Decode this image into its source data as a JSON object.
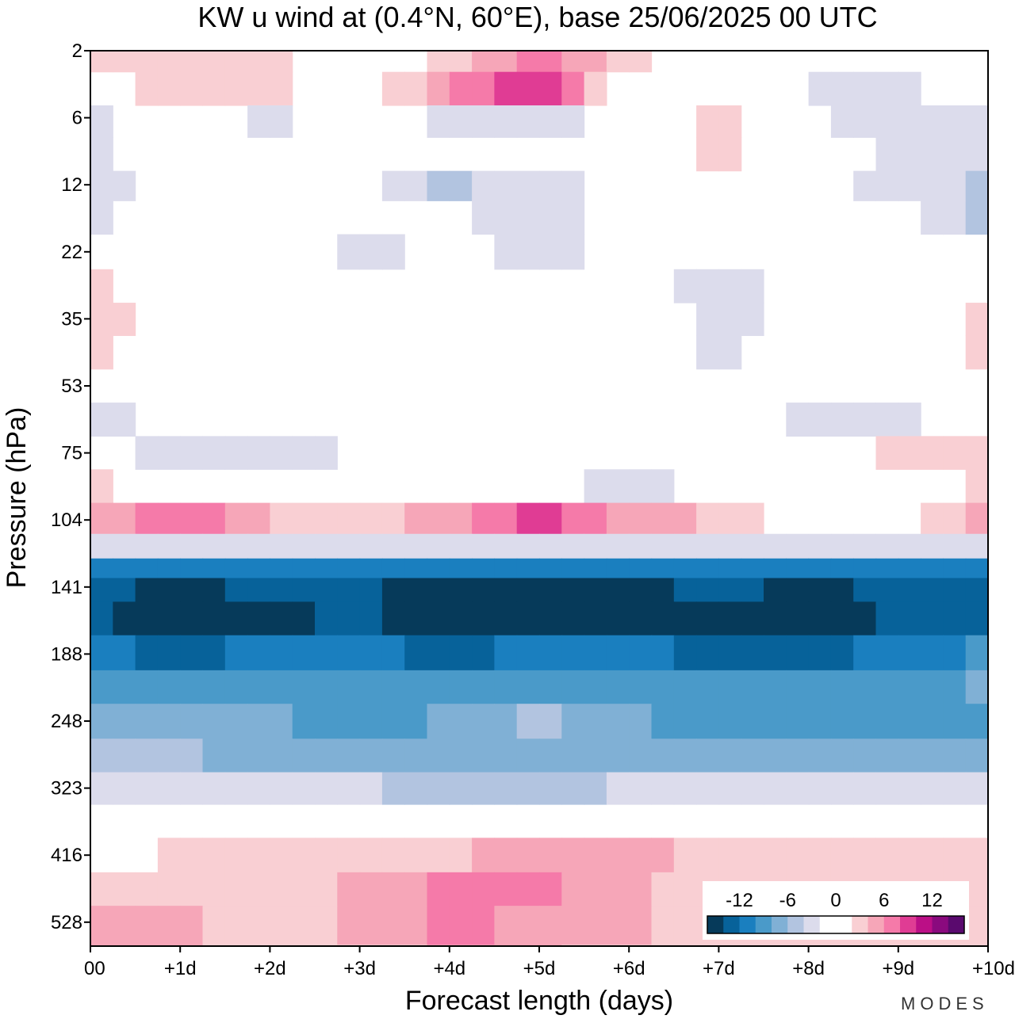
{
  "title": "KW u wind at (0.4°N, 60°E),  base 25/06/2025  00 UTC",
  "brand": "MODES",
  "chart_data": {
    "type": "heatmap",
    "xlabel": "Forecast length (days)",
    "ylabel": "Pressure (hPa)",
    "x_ticks": [
      "00",
      "+1d",
      "+2d",
      "+3d",
      "+4d",
      "+5d",
      "+6d",
      "+7d",
      "+8d",
      "+9d",
      "+10d"
    ],
    "x_range": [
      0,
      10
    ],
    "y_ticks": [
      2,
      6,
      12,
      22,
      35,
      53,
      75,
      104,
      141,
      188,
      248,
      323,
      416,
      528
    ],
    "y_scale": "log",
    "y_range": [
      2,
      620
    ],
    "y_inverted": true,
    "colorbar": {
      "tick_labels": [
        "-12",
        "-6",
        "0",
        "6",
        "12"
      ],
      "levels": [
        -16,
        -14,
        -12,
        -10,
        -8,
        -6,
        -4,
        -2,
        0,
        2,
        4,
        6,
        8,
        10,
        12,
        14,
        16
      ],
      "colors": [
        "#063a5a",
        "#07629a",
        "#1a7fbf",
        "#4a9ac9",
        "#80b0d5",
        "#b2c4e0",
        "#dcdcec",
        "#ffffff",
        "#ffffff",
        "#f9cfd3",
        "#f6a6b8",
        "#f57aa9",
        "#e03c94",
        "#bb0f86",
        "#8a0a7e",
        "#5a0a6e"
      ],
      "placement": "bottom-right"
    },
    "fields": [
      {
        "p": 2,
        "u": [
          2.5,
          2.5,
          3.5,
          -1.5,
          3.5,
          6.5,
          2.5,
          -0.5,
          -1.5,
          1.5,
          -0.5
        ]
      },
      {
        "p": 4,
        "u": [
          -0.5,
          3.5,
          2.5,
          0.5,
          5.5,
          9.5,
          0.5,
          1.5,
          -2.5,
          -3.5,
          0.5
        ]
      },
      {
        "p": 6,
        "u": [
          -2.5,
          -0.5,
          -2.5,
          -0.5,
          -2.5,
          -2.5,
          -1.5,
          2.5,
          -1.5,
          -3.5,
          -2.5
        ]
      },
      {
        "p": 9,
        "u": [
          -2.5,
          -0.5,
          0.5,
          0.5,
          -1.5,
          -1.5,
          0.5,
          2.5,
          -0.5,
          -2.5,
          -2.5
        ]
      },
      {
        "p": 12,
        "u": [
          -4.5,
          -0.5,
          -0.5,
          -1.5,
          -4.5,
          -2.5,
          -1.5,
          0.5,
          -1.5,
          -2.5,
          -4.5
        ]
      },
      {
        "p": 16,
        "u": [
          -2.5,
          0.5,
          -1.5,
          0.5,
          -1.5,
          -3.5,
          -0.5,
          0.5,
          0.5,
          -1.5,
          -4.5
        ]
      },
      {
        "p": 22,
        "u": [
          0.5,
          0.5,
          0.5,
          -2.5,
          -1.5,
          -2.5,
          -1.5,
          0.5,
          0.5,
          -0.5,
          -1.5
        ]
      },
      {
        "p": 28,
        "u": [
          2.5,
          0.5,
          0.5,
          0.5,
          0.5,
          -0.5,
          -1.5,
          -2.5,
          -1.5,
          0.5,
          0.5
        ]
      },
      {
        "p": 35,
        "u": [
          3.5,
          0.5,
          0.5,
          0.5,
          0.5,
          0.5,
          -0.5,
          -2.5,
          -1.5,
          0.5,
          2.5
        ]
      },
      {
        "p": 43,
        "u": [
          2.5,
          0.5,
          0.5,
          0.5,
          0.5,
          0.5,
          -0.5,
          -2.5,
          0.5,
          0.5,
          2.5
        ]
      },
      {
        "p": 53,
        "u": [
          0.5,
          0.5,
          0.5,
          0.5,
          1.5,
          0.5,
          0.5,
          0.5,
          -1.5,
          -1.5,
          0.5
        ]
      },
      {
        "p": 63,
        "u": [
          -2.5,
          -1.5,
          0.5,
          0.5,
          0.5,
          1.5,
          0.5,
          0.5,
          -2.5,
          -2.5,
          0.5
        ]
      },
      {
        "p": 75,
        "u": [
          -1.5,
          -2.5,
          -3.5,
          -1.5,
          -1.5,
          -0.5,
          0.5,
          1.5,
          0.5,
          2.5,
          2.5
        ]
      },
      {
        "p": 88,
        "u": [
          2.5,
          -0.5,
          -0.5,
          -0.5,
          -1.5,
          -1.5,
          -2.5,
          -1.5,
          0.5,
          0.5,
          2.5
        ]
      },
      {
        "p": 104,
        "u": [
          4.5,
          7.5,
          3.5,
          2.5,
          5.5,
          8.5,
          5.5,
          3.5,
          0.5,
          0.5,
          4.5
        ]
      },
      {
        "p": 118,
        "u": [
          -2.5,
          -2.5,
          -2.5,
          -2.5,
          -2.5,
          -2.5,
          -2.5,
          -2.5,
          -2.5,
          -2.5,
          -2.5
        ]
      },
      {
        "p": 130,
        "u": [
          -10.5,
          -10.5,
          -10.5,
          -10.5,
          -10.5,
          -10.5,
          -10.5,
          -10.5,
          -10.5,
          -10.5,
          -10.5
        ]
      },
      {
        "p": 141,
        "u": [
          -13.5,
          -14.5,
          -13.5,
          -13.5,
          -15.5,
          -16.5,
          -14.5,
          -13.5,
          -14.5,
          -13.5,
          -13.5
        ]
      },
      {
        "p": 160,
        "u": [
          -13.5,
          -16.5,
          -14.5,
          -13.5,
          -16.5,
          -16.5,
          -14.5,
          -16.5,
          -16.5,
          -13.5,
          -13.5
        ]
      },
      {
        "p": 188,
        "u": [
          -11.5,
          -12.5,
          -11.5,
          -11.5,
          -12.5,
          -11.5,
          -11.5,
          -12.5,
          -12.5,
          -11.5,
          -9.5
        ]
      },
      {
        "p": 215,
        "u": [
          -9.5,
          -9.5,
          -9.5,
          -9.5,
          -9.5,
          -9.5,
          -8.5,
          -9.5,
          -9.5,
          -9.5,
          -7.5
        ]
      },
      {
        "p": 248,
        "u": [
          -7.5,
          -7.5,
          -7.5,
          -9.5,
          -7.5,
          -5.5,
          -7.5,
          -9.5,
          -9.5,
          -9.5,
          -9.5
        ]
      },
      {
        "p": 285,
        "u": [
          -5.5,
          -5.5,
          -7.5,
          -7.5,
          -7.5,
          -7.5,
          -7.5,
          -7.5,
          -7.5,
          -7.5,
          -7.5
        ]
      },
      {
        "p": 323,
        "u": [
          -3.5,
          -3.5,
          -3.5,
          -3.5,
          -5.5,
          -5.5,
          -3.5,
          -3.5,
          -3.5,
          -3.5,
          -3.5
        ]
      },
      {
        "p": 365,
        "u": [
          0.5,
          0.5,
          0.5,
          0.5,
          0.5,
          0.5,
          0.5,
          0.5,
          0.5,
          0.5,
          0.5
        ]
      },
      {
        "p": 416,
        "u": [
          0.5,
          2.5,
          2.5,
          2.5,
          3.5,
          5.5,
          5.5,
          2.5,
          2.5,
          2.5,
          2.5
        ]
      },
      {
        "p": 470,
        "u": [
          2.5,
          2.5,
          2.5,
          4.5,
          6.5,
          6.5,
          4.5,
          2.5,
          2.5,
          2.5,
          3.5
        ]
      },
      {
        "p": 528,
        "u": [
          4.5,
          4.5,
          2.5,
          4.5,
          6.5,
          5.5,
          4.5,
          2.5,
          2.5,
          2.5,
          2.5
        ]
      },
      {
        "p": 620,
        "u": [
          4.5,
          4.5,
          2.5,
          2.5,
          4.5,
          4.5,
          2.5,
          2.5,
          2.5,
          2.5,
          2.5
        ]
      }
    ]
  }
}
